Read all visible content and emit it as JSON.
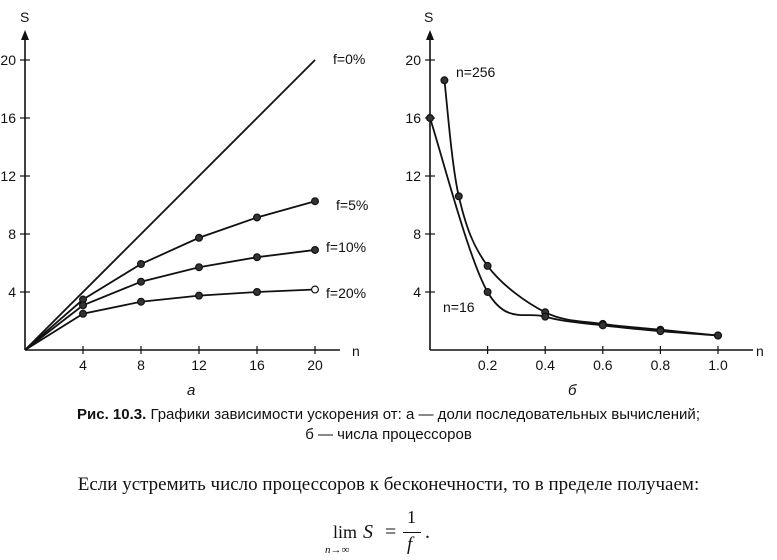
{
  "chart_data": [
    {
      "type": "line",
      "panel_label": "а",
      "xlabel": "n",
      "ylabel": "S",
      "xlim": [
        0,
        21.5
      ],
      "ylim": [
        0,
        21.5
      ],
      "x_ticks": [
        "4",
        "8",
        "12",
        "16",
        "20"
      ],
      "y_ticks": [
        "4",
        "8",
        "12",
        "16",
        "20"
      ],
      "series": [
        {
          "name": "f=0%",
          "x": [
            0,
            20
          ],
          "y": [
            0,
            20
          ],
          "markers": false
        },
        {
          "name": "f=5%",
          "x": [
            0,
            4,
            8,
            12,
            16,
            20
          ],
          "y": [
            0,
            3.48,
            5.93,
            7.74,
            9.14,
            10.26
          ],
          "markers": true
        },
        {
          "name": "f=10%",
          "x": [
            0,
            4,
            8,
            12,
            16,
            20
          ],
          "y": [
            0,
            3.08,
            4.71,
            5.71,
            6.4,
            6.9
          ],
          "markers": true
        },
        {
          "name": "f=20%",
          "x": [
            0,
            4,
            8,
            12,
            16,
            20
          ],
          "y": [
            0,
            2.5,
            3.33,
            3.75,
            4.0,
            4.17
          ],
          "markers": true
        }
      ]
    },
    {
      "type": "line",
      "panel_label": "б",
      "xlabel": "n",
      "ylabel": "S",
      "xlim": [
        0,
        1.08
      ],
      "ylim": [
        0,
        21.5
      ],
      "x_ticks": [
        "0.2",
        "0.4",
        "0.6",
        "0.8",
        "1.0"
      ],
      "y_ticks": [
        "4",
        "8",
        "12",
        "16",
        "20"
      ],
      "series": [
        {
          "name": "n=256",
          "x": [
            0.05,
            0.1,
            0.2,
            0.4,
            0.6,
            0.8,
            1.0
          ],
          "y": [
            18.6,
            10.6,
            5.8,
            2.6,
            1.8,
            1.4,
            1.0
          ],
          "markers": true
        },
        {
          "name": "n=16",
          "x": [
            0.0,
            0.2,
            0.4,
            0.6,
            0.8,
            1.0
          ],
          "y": [
            16.0,
            4.0,
            2.3,
            1.7,
            1.3,
            1.0
          ],
          "markers": true
        }
      ]
    }
  ],
  "caption": {
    "label": "Рис. 10.3.",
    "line1": "Графики зависимости ускорения от: а — доли последовательных вычислений;",
    "line2": "б — числа процессоров"
  },
  "body_text": "Если устремить число процессоров к бесконечности, то в пределе получаем:",
  "formula": {
    "lim": "lim",
    "subscript": "n→∞",
    "lhs": "S",
    "eq": "=",
    "numerator": "1",
    "denominator": "f",
    "end": "."
  }
}
